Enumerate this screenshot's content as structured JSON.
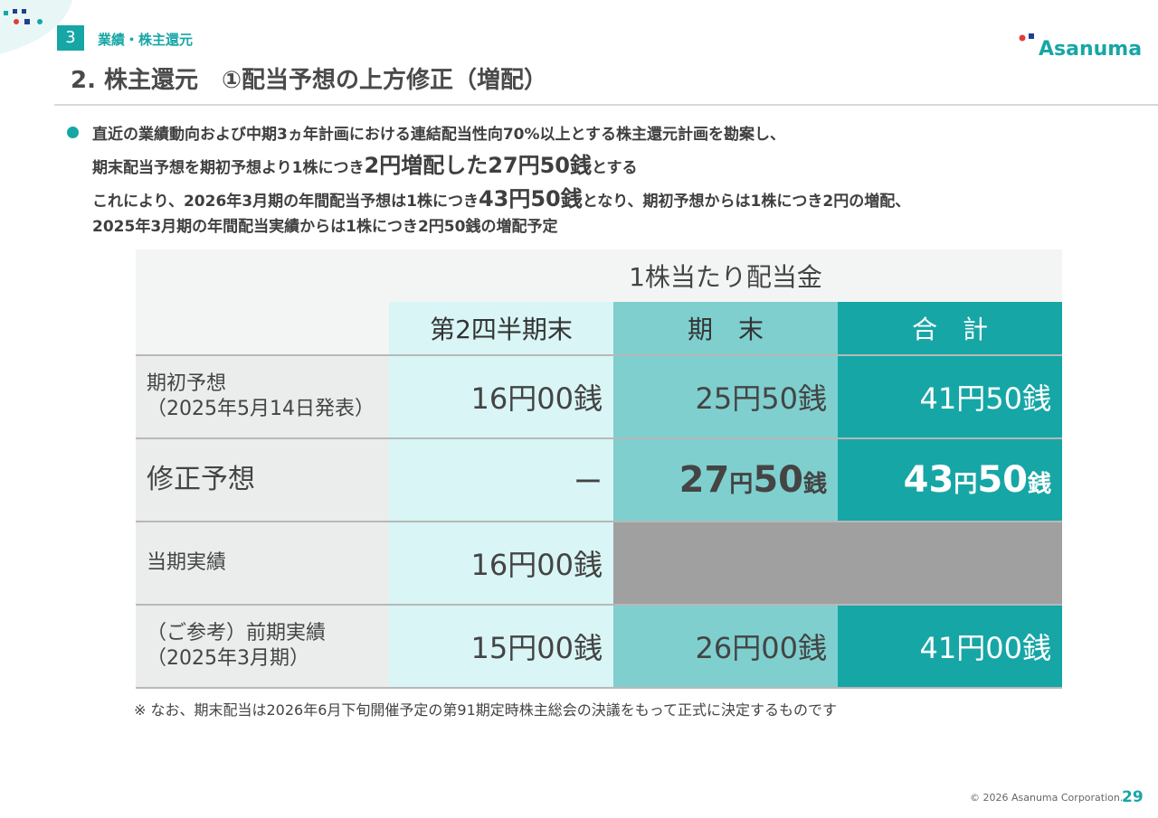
{
  "header": {
    "section_number": "3",
    "section_label": "業績・株主還元",
    "logo_text": "Asanuma",
    "title": "2. 株主還元　①配当予想の上方修正（増配）"
  },
  "body": {
    "line1": "直近の業績動向および中期3ヵ年計画における連結配当性向70%以上とする株主還元計画を勘案し、",
    "line2_a": "期末配当予想を期初予想より1株につき",
    "line2_b": "2円増配した27円50銭",
    "line2_c": "とする",
    "line3_a": "これにより、2026年3月期の年間配当予想は1株につき",
    "line3_b": "43円50銭",
    "line3_c": "となり、期初予想からは1株につき2円の増配、",
    "line4": "2025年3月期の年間配当実績からは1株につき2円50銭の増配予定"
  },
  "table": {
    "group_header": "1株当たり配当金",
    "col_q2": "第2四半期末",
    "col_end": "期　末",
    "col_total": "合　計",
    "rows": [
      {
        "label1": "期初予想",
        "label2": "（2025年5月14日発表）",
        "q2": "16円00銭",
        "end": "25円50銭",
        "total": "41円50銭"
      },
      {
        "label1": "修正予想",
        "q2": "ー",
        "end_num1": "27",
        "end_unit1": "円",
        "end_num2": "50",
        "end_unit2": "銭",
        "total_num1": "43",
        "total_unit1": "円",
        "total_num2": "50",
        "total_unit2": "銭"
      },
      {
        "label1": "当期実績",
        "q2": "16円00銭"
      },
      {
        "label1": "（ご参考）前期実績",
        "label2": "（2025年3月期）",
        "q2": "15円00銭",
        "end": "26円00銭",
        "total": "41円00銭"
      }
    ]
  },
  "note": "※ なお、期末配当は2026年6月下旬開催予定の第91期定時株主総会の決議をもって正式に決定するものです",
  "footer": {
    "copyright": "© 2026 Asanuma Corporation.",
    "page": "29"
  },
  "colors": {
    "accent": "#17a6a6",
    "mid_teal": "#7fcfcf",
    "light_teal": "#d9f5f5",
    "gray_cell": "#a0a0a0"
  }
}
